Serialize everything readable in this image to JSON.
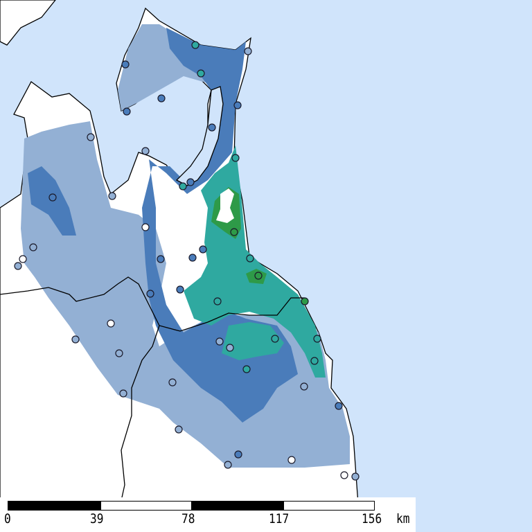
{
  "colors": {
    "sea": "#d0e4fb",
    "land_nodata": "#ffffff",
    "class_light": "#93b0d4",
    "class_blue": "#4a7cba",
    "class_teal": "#2fa9a0",
    "class_green": "#2e9a48",
    "boundary": "#000000"
  },
  "scale_bar": {
    "ticks": [
      "0",
      "39",
      "78",
      "117",
      "156"
    ],
    "unit": "km"
  },
  "icons": {
    "station_marker": "circle"
  }
}
